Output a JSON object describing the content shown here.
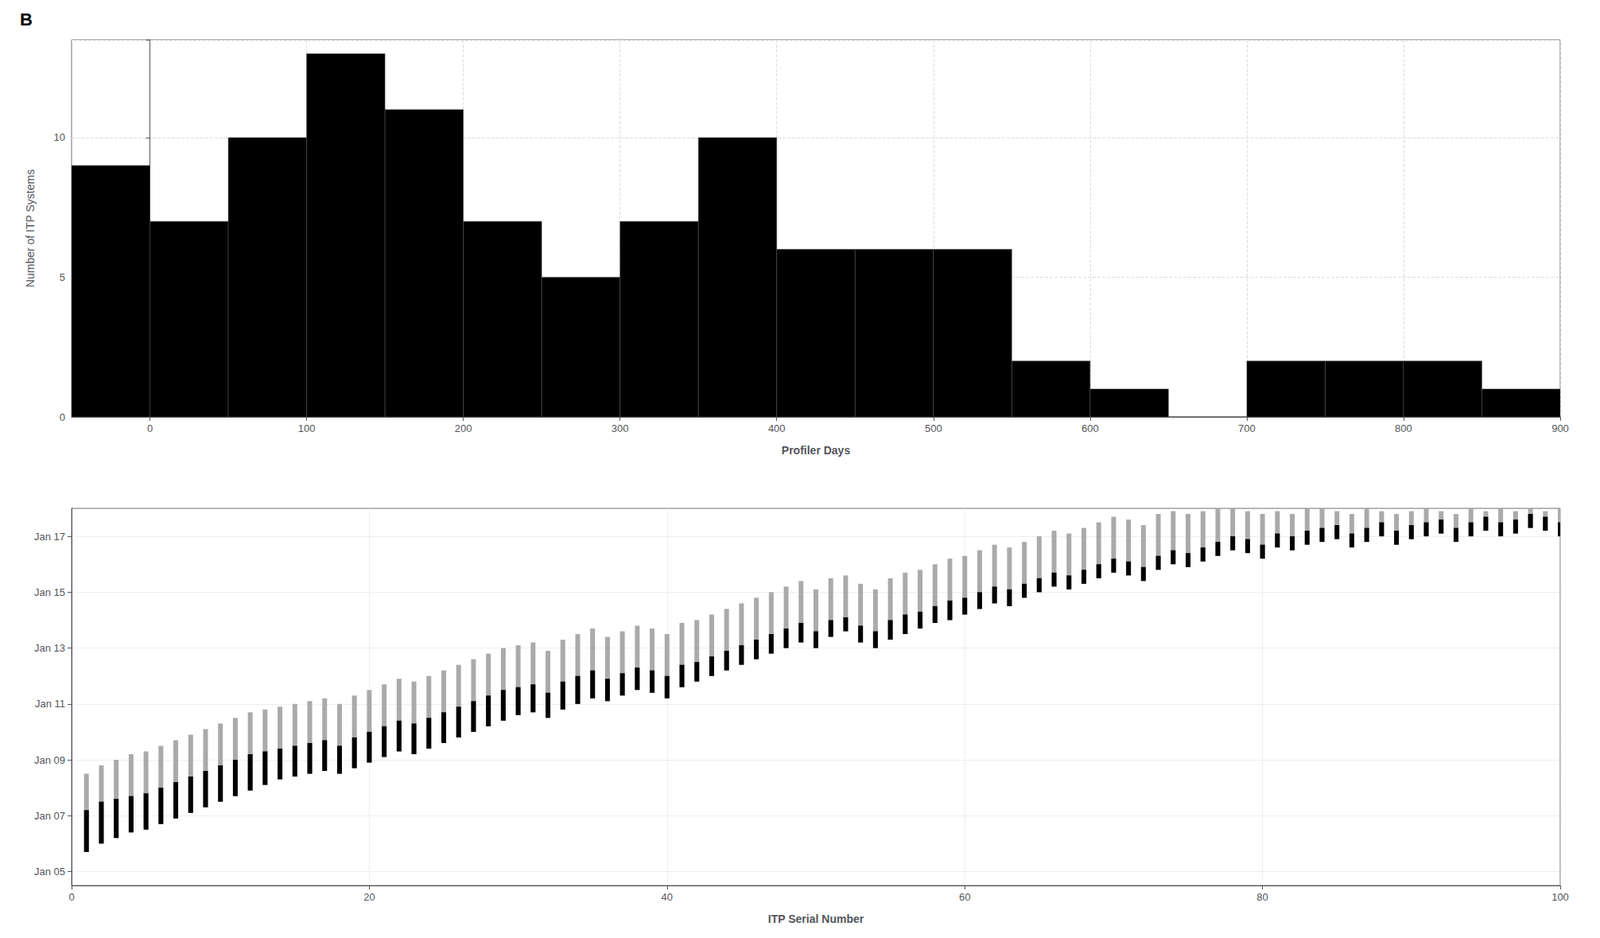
{
  "chart_data": [
    {
      "type": "histogram",
      "title": "B",
      "xlabel": "Profiler Days",
      "ylabel": "Number of ITP Systems",
      "bins": [
        -50,
        0,
        50,
        100,
        150,
        200,
        250,
        300,
        350,
        400,
        450,
        500,
        550,
        600,
        650,
        700,
        750,
        800,
        850,
        900
      ],
      "values": [
        9,
        7,
        10,
        13,
        11,
        7,
        5,
        7,
        10,
        6,
        6,
        6,
        2,
        1,
        0,
        2,
        2,
        2,
        1
      ],
      "color": "#000000",
      "xlim": [
        -50,
        900
      ],
      "ylim": [
        0,
        13.5
      ],
      "xticks": [
        0,
        100,
        200,
        300,
        400,
        500,
        600,
        700,
        800,
        900
      ],
      "yticks": [
        0,
        5,
        10
      ],
      "grid": true
    },
    {
      "type": "range_bar",
      "xlabel": "ITP Serial Number",
      "x": [
        1,
        2,
        3,
        4,
        5,
        6,
        7,
        8,
        9,
        10,
        11,
        12,
        13,
        14,
        15,
        16,
        17,
        18,
        19,
        20,
        21,
        22,
        23,
        24,
        25,
        26,
        27,
        28,
        29,
        30,
        31,
        32,
        33,
        34,
        35,
        36,
        37,
        38,
        39,
        40,
        41,
        42,
        43,
        44,
        45,
        46,
        47,
        48,
        49,
        50,
        51,
        52,
        53,
        54,
        55,
        56,
        57,
        58,
        59,
        60,
        61,
        62,
        63,
        64,
        65,
        66,
        67,
        68,
        69,
        70,
        71,
        72,
        73,
        74,
        75,
        76,
        77,
        78,
        79,
        80,
        81,
        82,
        83,
        84,
        85,
        86,
        87,
        88,
        89,
        90,
        91,
        92,
        93,
        94,
        95,
        96,
        97,
        98,
        99,
        100
      ],
      "starts": [
        2005.7,
        2006.0,
        2006.2,
        2006.4,
        2006.5,
        2006.7,
        2006.9,
        2007.1,
        2007.3,
        2007.5,
        2007.7,
        2007.9,
        2008.1,
        2008.3,
        2008.4,
        2008.5,
        2008.6,
        2008.5,
        2008.7,
        2008.9,
        2009.1,
        2009.3,
        2009.2,
        2009.4,
        2009.6,
        2009.8,
        2010.0,
        2010.2,
        2010.4,
        2010.6,
        2010.7,
        2010.5,
        2010.8,
        2011.0,
        2011.2,
        2011.1,
        2011.3,
        2011.5,
        2011.4,
        2011.2,
        2011.6,
        2011.8,
        2012.0,
        2012.2,
        2012.4,
        2012.6,
        2012.8,
        2013.0,
        2013.2,
        2013.0,
        2013.4,
        2013.6,
        2013.2,
        2013.0,
        2013.3,
        2013.5,
        2013.7,
        2013.9,
        2014.0,
        2014.2,
        2014.4,
        2014.6,
        2014.5,
        2014.8,
        2015.0,
        2015.2,
        2015.1,
        2015.3,
        2015.5,
        2015.7,
        2015.6,
        2015.4,
        2015.8,
        2016.0,
        2015.9,
        2016.1,
        2016.3,
        2016.5,
        2016.4,
        2016.2,
        2016.6,
        2016.5,
        2016.7,
        2016.8,
        2016.9,
        2016.6,
        2016.8,
        2017.0,
        2016.7,
        2016.9,
        2017.0,
        2017.1,
        2016.8,
        2017.0,
        2017.2,
        2017.0,
        2017.1,
        2017.3,
        2017.2,
        2017.0
      ],
      "series": [
        {
          "color": "#AAAAAA",
          "values": [
            2008.5,
            2008.8,
            2009.0,
            2009.2,
            2009.3,
            2009.5,
            2009.7,
            2009.9,
            2010.1,
            2010.3,
            2010.5,
            2010.7,
            2010.8,
            2010.9,
            2011.0,
            2011.1,
            2011.2,
            2011.0,
            2011.3,
            2011.5,
            2011.7,
            2011.9,
            2011.8,
            2012.0,
            2012.2,
            2012.4,
            2012.6,
            2012.8,
            2013.0,
            2013.1,
            2013.2,
            2012.9,
            2013.3,
            2013.5,
            2013.7,
            2013.4,
            2013.6,
            2013.8,
            2013.7,
            2013.5,
            2013.9,
            2014.0,
            2014.2,
            2014.4,
            2014.6,
            2014.8,
            2015.0,
            2015.2,
            2015.4,
            2015.1,
            2015.5,
            2015.6,
            2015.3,
            2015.1,
            2015.5,
            2015.7,
            2015.8,
            2016.0,
            2016.2,
            2016.3,
            2016.5,
            2016.7,
            2016.6,
            2016.8,
            2017.0,
            2017.2,
            2017.1,
            2017.3,
            2017.5,
            2017.7,
            2017.6,
            2017.4,
            2017.8,
            2017.9,
            2017.8,
            2017.9,
            2018.0,
            2018.0,
            2017.9,
            2017.8,
            2017.9,
            2017.8,
            2018.0,
            2018.0,
            2017.9,
            2017.8,
            2018.0,
            2017.9,
            2017.8,
            2017.9,
            2018.0,
            2017.9,
            2017.8,
            2018.0,
            2017.9,
            2018.0,
            2017.9,
            2018.0,
            2017.9,
            2018.0
          ]
        },
        {
          "color": "#000000",
          "values": [
            2007.2,
            2007.5,
            2007.6,
            2007.7,
            2007.8,
            2008.0,
            2008.2,
            2008.4,
            2008.6,
            2008.8,
            2009.0,
            2009.2,
            2009.3,
            2009.4,
            2009.5,
            2009.6,
            2009.7,
            2009.5,
            2009.8,
            2010.0,
            2010.2,
            2010.4,
            2010.3,
            2010.5,
            2010.7,
            2010.9,
            2011.1,
            2011.3,
            2011.5,
            2011.6,
            2011.7,
            2011.4,
            2011.8,
            2012.0,
            2012.2,
            2011.9,
            2012.1,
            2012.3,
            2012.2,
            2012.0,
            2012.4,
            2012.5,
            2012.7,
            2012.9,
            2013.1,
            2013.3,
            2013.5,
            2013.7,
            2013.9,
            2013.6,
            2014.0,
            2014.1,
            2013.8,
            2013.6,
            2014.0,
            2014.2,
            2014.3,
            2014.5,
            2014.7,
            2014.8,
            2015.0,
            2015.2,
            2015.1,
            2015.3,
            2015.5,
            2015.7,
            2015.6,
            2015.8,
            2016.0,
            2016.2,
            2016.1,
            2015.9,
            2016.3,
            2016.5,
            2016.4,
            2016.6,
            2016.8,
            2017.0,
            2016.9,
            2016.7,
            2017.1,
            2017.0,
            2017.2,
            2017.3,
            2017.4,
            2017.1,
            2017.3,
            2017.5,
            2017.2,
            2017.4,
            2017.5,
            2017.6,
            2017.3,
            2017.5,
            2017.7,
            2017.5,
            2017.6,
            2017.8,
            2017.7,
            2017.5
          ]
        }
      ],
      "xlim": [
        0,
        100
      ],
      "ylim": [
        2004.5,
        2018.0
      ],
      "xticks": [
        0,
        20,
        40,
        60,
        80,
        100
      ],
      "yticks": [
        {
          "value": 2005,
          "label": "Jan 05"
        },
        {
          "value": 2007,
          "label": "Jan 07"
        },
        {
          "value": 2009,
          "label": "Jan 09"
        },
        {
          "value": 2011,
          "label": "Jan 11"
        },
        {
          "value": 2013,
          "label": "Jan 13"
        },
        {
          "value": 2015,
          "label": "Jan 15"
        },
        {
          "value": 2017,
          "label": "Jan 17"
        }
      ],
      "grid": true
    }
  ]
}
